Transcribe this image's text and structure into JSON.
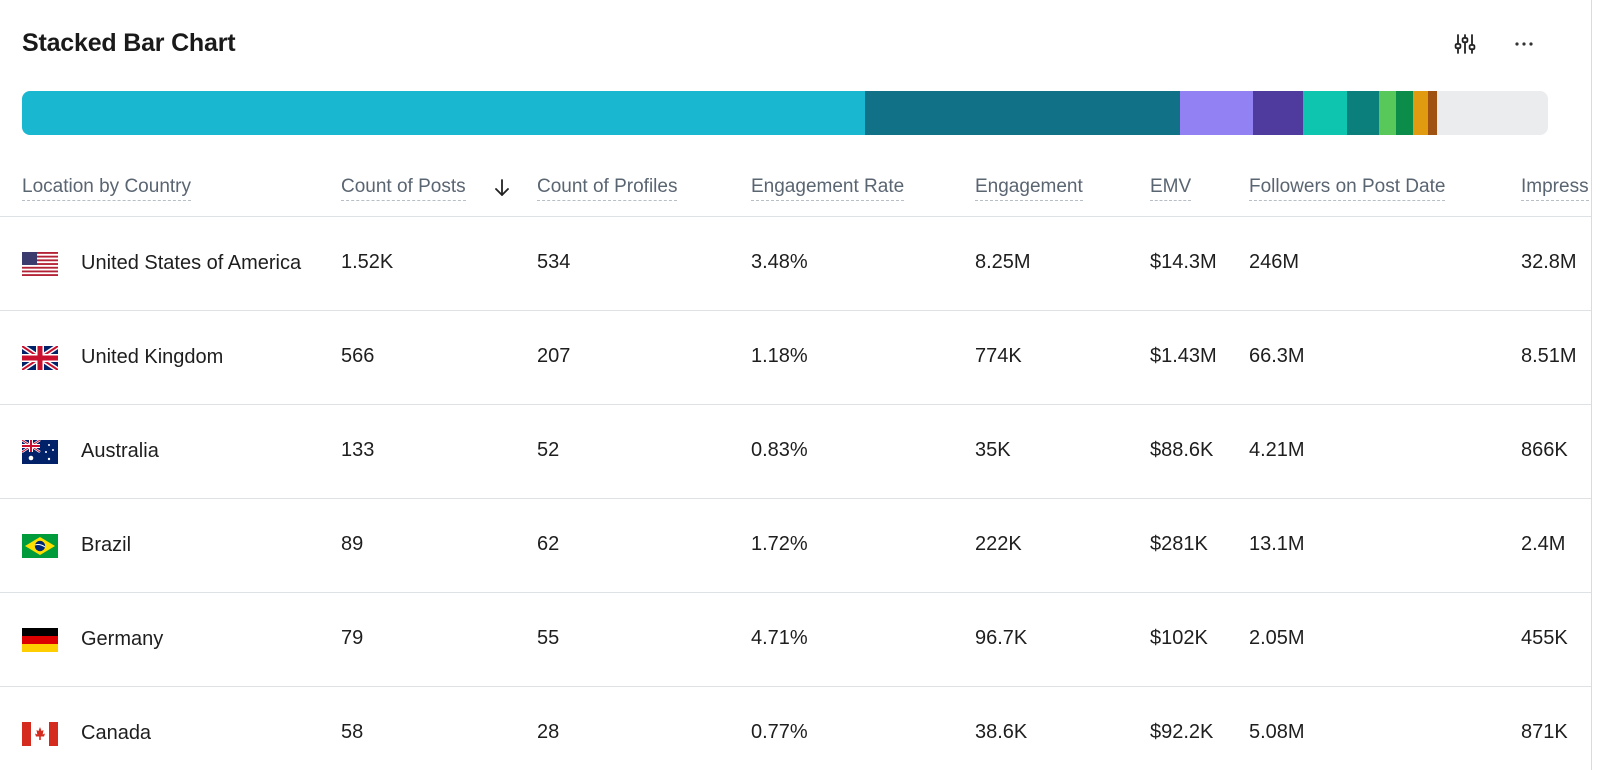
{
  "widget": {
    "title": "Stacked Bar Chart",
    "settings_icon": "sliders-icon",
    "more_icon": "more-horizontal-icon"
  },
  "stacked_bar": {
    "segments": [
      {
        "value": 1520,
        "color": "#1ab8d0"
      },
      {
        "value": 566,
        "color": "#117186"
      },
      {
        "value": 133,
        "color": "#9281f2"
      },
      {
        "value": 89,
        "color": "#4f3a9e"
      },
      {
        "value": 79,
        "color": "#0ec6b0"
      },
      {
        "value": 58,
        "color": "#0a7f7b"
      },
      {
        "value": 31,
        "color": "#59c85a"
      },
      {
        "value": 31,
        "color": "#0b8c48"
      },
      {
        "value": 27,
        "color": "#e09b10"
      },
      {
        "value": 16,
        "color": "#a05213"
      }
    ],
    "remainder_color": "#ebeced"
  },
  "table": {
    "columns": [
      "Location by Country",
      "Count of Posts",
      "Count of Profiles",
      "Engagement Rate",
      "Engagement",
      "EMV",
      "Followers on Post Date",
      "Impress"
    ],
    "sort": {
      "column": "Count of Posts",
      "direction": "descending",
      "icon": "arrow-down-icon"
    },
    "rows": [
      {
        "country": "United States of America",
        "flag": "us",
        "cells": [
          "1.52K",
          "534",
          "3.48%",
          "8.25M",
          "$14.3M",
          "246M",
          "32.8M"
        ]
      },
      {
        "country": "United Kingdom",
        "flag": "gb",
        "cells": [
          "566",
          "207",
          "1.18%",
          "774K",
          "$1.43M",
          "66.3M",
          "8.51M"
        ]
      },
      {
        "country": "Australia",
        "flag": "au",
        "cells": [
          "133",
          "52",
          "0.83%",
          "35K",
          "$88.6K",
          "4.21M",
          "866K"
        ]
      },
      {
        "country": "Brazil",
        "flag": "br",
        "cells": [
          "89",
          "62",
          "1.72%",
          "222K",
          "$281K",
          "13.1M",
          "2.4M"
        ]
      },
      {
        "country": "Germany",
        "flag": "de",
        "cells": [
          "79",
          "55",
          "4.71%",
          "96.7K",
          "$102K",
          "2.05M",
          "455K"
        ]
      },
      {
        "country": "Canada",
        "flag": "ca",
        "cells": [
          "58",
          "28",
          "0.77%",
          "38.6K",
          "$92.2K",
          "5.08M",
          "871K"
        ]
      }
    ]
  }
}
